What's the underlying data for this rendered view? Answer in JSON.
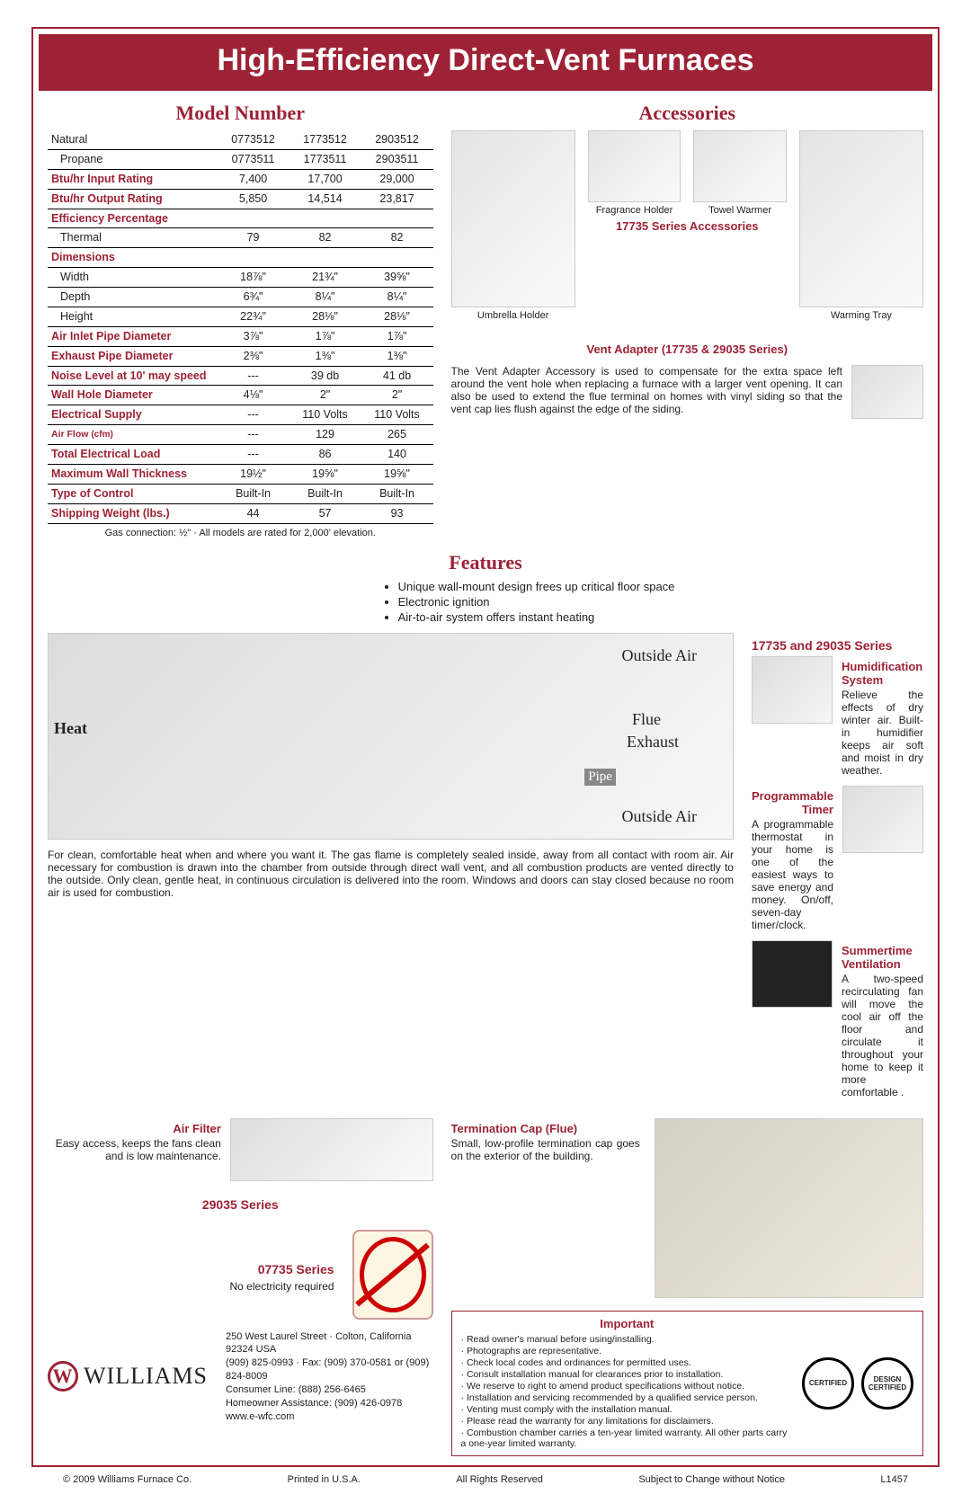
{
  "banner": "High-Efficiency Direct-Vent Furnaces",
  "sections": {
    "model": "Model Number",
    "accessories": "Accessories",
    "features": "Features"
  },
  "spec_table": {
    "cols": [
      "0773512",
      "1773512",
      "2903512"
    ],
    "rows": [
      {
        "label": "Natural",
        "class": "",
        "cells": [
          "0773512",
          "1773512",
          "2903512"
        ]
      },
      {
        "label": "Propane",
        "class": "indent",
        "cells": [
          "0773511",
          "1773511",
          "2903511"
        ]
      },
      {
        "label": "Btu/hr Input Rating",
        "class": "red",
        "cells": [
          "7,400",
          "17,700",
          "29,000"
        ]
      },
      {
        "label": "Btu/hr Output Rating",
        "class": "red",
        "cells": [
          "5,850",
          "14,514",
          "23,817"
        ]
      },
      {
        "label": "Efficiency Percentage",
        "class": "red",
        "cells": [
          "",
          "",
          ""
        ]
      },
      {
        "label": "Thermal",
        "class": "indent",
        "cells": [
          "79",
          "82",
          "82"
        ]
      },
      {
        "label": "Dimensions",
        "class": "red",
        "cells": [
          "",
          "",
          ""
        ]
      },
      {
        "label": "Width",
        "class": "indent",
        "cells": [
          "18⅞\"",
          "21¾\"",
          "39⅝\""
        ]
      },
      {
        "label": "Depth",
        "class": "indent",
        "cells": [
          "6¾\"",
          "8¼\"",
          "8¼\""
        ]
      },
      {
        "label": "Height",
        "class": "indent",
        "cells": [
          "22¾\"",
          "28⅛\"",
          "28⅛\""
        ]
      },
      {
        "label": "Air Inlet Pipe Diameter",
        "class": "red",
        "cells": [
          "3⅞\"",
          "1⅞\"",
          "1⅞\""
        ]
      },
      {
        "label": "Exhaust Pipe Diameter",
        "class": "red",
        "cells": [
          "2⅜\"",
          "1⅜\"",
          "1⅜\""
        ]
      },
      {
        "label": "Noise Level at 10' may speed",
        "class": "red",
        "cells": [
          "---",
          "39 db",
          "41 db"
        ]
      },
      {
        "label": "Wall Hole Diameter",
        "class": "red",
        "cells": [
          "4⅛\"",
          "2\"",
          "2\""
        ]
      },
      {
        "label": "Electrical Supply",
        "class": "red",
        "cells": [
          "---",
          "110 Volts",
          "110 Volts"
        ]
      },
      {
        "label": "Air Flow (cfm)",
        "class": "red small",
        "cells": [
          "---",
          "129",
          "265"
        ]
      },
      {
        "label": "Total Electrical Load",
        "class": "red",
        "cells": [
          "---",
          "86",
          "140"
        ]
      },
      {
        "label": "Maximum Wall Thickness",
        "class": "red",
        "cells": [
          "19½\"",
          "19⅝\"",
          "19⅝\""
        ]
      },
      {
        "label": "Type of Control",
        "class": "red",
        "cells": [
          "Built-In",
          "Built-In",
          "Built-In"
        ]
      },
      {
        "label": "Shipping Weight (lbs.)",
        "class": "red",
        "cells": [
          "44",
          "57",
          "93"
        ]
      }
    ],
    "note": "Gas connection:  ½\"   ·   All models are rated for 2,000' elevation."
  },
  "accessories": {
    "items": [
      {
        "label": "Umbrella Holder"
      },
      {
        "label": "Fragrance Holder"
      },
      {
        "label": "Towel Warmer"
      },
      {
        "label": "Warming Tray"
      }
    ],
    "center_title": "17735 Series Accessories",
    "vent_title": "Vent Adapter (17735 & 29035 Series)",
    "vent_text": "The Vent Adapter Accessory is used to compensate for the extra space left around the vent hole when replacing a furnace with a larger vent opening. It can also be used to extend the flue terminal on homes with vinyl siding so that the vent cap lies flush against the edge of the siding."
  },
  "features_list": [
    "Unique wall-mount design frees up critical floor space",
    "Electronic ignition",
    "Air-to-air system offers instant heating"
  ],
  "diagram_labels": {
    "heat": "Heat",
    "oa": "Outside Air",
    "flue": "Flue",
    "exhaust": "Exhaust",
    "pipe": "Pipe"
  },
  "series_title": "17735 and 29035 Series",
  "feat_blocks": {
    "humid": {
      "title": "Humidification System",
      "text": "Relieve the effects of dry winter air. Built-in humidifier keeps air soft and moist in dry weather."
    },
    "timer": {
      "title": "Programmable Timer",
      "text": "A programmable thermostat in your home is one of the easiest ways to save energy and money. On/off, seven-day timer/clock."
    },
    "summer": {
      "title": "Summertime Ventilation",
      "text": "A two-speed recirculating fan will move the cool air off the floor and circulate it throughout your home to keep it more comfortable ."
    }
  },
  "big_para": "For clean, comfortable heat when and where you want it.  The gas flame is completely sealed inside, away from all contact with room air.  Air necessary for combustion is drawn into the chamber from outside through direct wall vent, and all combustion products are vented directly to the outside.  Only clean, gentle heat, in continuous circulation is delivered into the room.  Windows and doors can stay closed because no room air is used for combustion.",
  "air_filter": {
    "title": "Air Filter",
    "text": "Easy access, keeps the fans clean and is low maintenance."
  },
  "series29": "29035 Series",
  "series07": {
    "title": "07735 Series",
    "text": "No electricity required"
  },
  "term_cap": {
    "title": "Termination Cap (Flue)",
    "text": "Small, low-profile termination cap goes on the exterior of the building."
  },
  "important": {
    "title": "Important",
    "items": [
      "Read owner's manual before using/installing.",
      "Photographs are representative.",
      "Check local codes and ordinances for permitted uses.",
      "Consult installation manual for clearances prior to installation.",
      "We reserve to right to amend product specifications without notice.",
      "Installation and servicing recommended by a qualified service person.",
      "Venting must comply with the installation manual.",
      "Please read the warranty for any limitations for disclaimers.",
      "Combustion chamber carries a ten-year limited warranty.  All other parts carry a one-year limited warranty."
    ],
    "cert1": "CERTIFIED",
    "cert2": "DESIGN CERTIFIED"
  },
  "company": {
    "name": "WILLIAMS",
    "addr": [
      "250 West Laurel Street · Colton, California 92324 USA",
      "(909) 825-0993 · Fax:  (909) 370-0581 or (909) 824-8009",
      "Consumer Line:  (888) 256-6465",
      "Homeowner Assistance:  (909) 426-0978",
      "www.e-wfc.com"
    ]
  },
  "bottom": [
    "© 2009 Williams Furnace Co.",
    "Printed in U.S.A.",
    "All Rights Reserved",
    "Subject to Change without Notice",
    "L1457"
  ]
}
